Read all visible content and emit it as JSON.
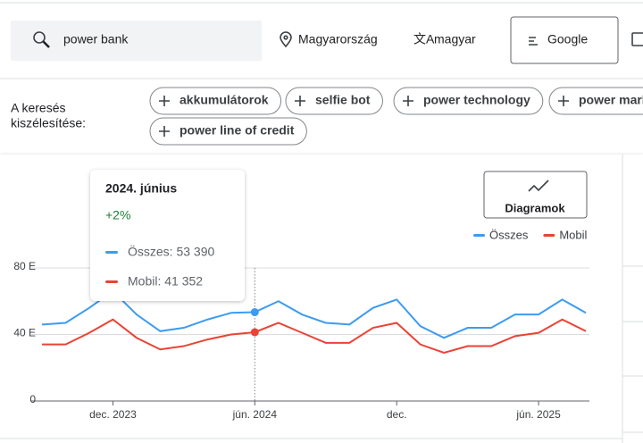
{
  "header": {
    "search": "power bank",
    "location": "Magyarország",
    "language": "magyar",
    "network": "Google"
  },
  "broaden": {
    "label": [
      "A keresés",
      "kiszélesítése:"
    ],
    "chips": [
      "akkumulátorok",
      "selfie bot",
      "power technology",
      "power mark",
      "power line of credit"
    ]
  },
  "chart_button": "Diagramok",
  "tooltip": {
    "title": "2024. június",
    "change": "+2%",
    "lines": [
      "Összes: 53 390",
      "Mobil: 41 352"
    ]
  },
  "chart_data": {
    "type": "line",
    "categories": [
      null,
      null,
      null,
      "dec. 2023",
      null,
      null,
      null,
      null,
      null,
      "jún. 2024",
      null,
      null,
      null,
      null,
      null,
      "dec.",
      null,
      null,
      null,
      null,
      null,
      "jún. 2025",
      null,
      null
    ],
    "series": [
      {
        "name": "Összes",
        "color": "#3d9bf0",
        "values": [
          46000,
          47000,
          56000,
          66000,
          52000,
          42000,
          44000,
          49000,
          53000,
          53390,
          60000,
          52000,
          47000,
          46000,
          56000,
          61000,
          45000,
          38000,
          44000,
          44000,
          52000,
          52000,
          61000,
          53000
        ]
      },
      {
        "name": "Mobil",
        "color": "#ea4335",
        "values": [
          34000,
          34000,
          41000,
          49000,
          38000,
          31000,
          33000,
          37000,
          40000,
          41352,
          47000,
          41000,
          35000,
          35000,
          44000,
          47000,
          34000,
          29000,
          33000,
          33000,
          39000,
          41000,
          49000,
          42000
        ]
      }
    ],
    "ylim": [
      0,
      80000
    ],
    "yticks": [
      {
        "value": 0,
        "label": "0"
      },
      {
        "value": 40000,
        "label": "40 E"
      },
      {
        "value": 80000,
        "label": "80 E"
      }
    ],
    "grid": true,
    "legend": "top-right",
    "highlight_index": 9
  }
}
